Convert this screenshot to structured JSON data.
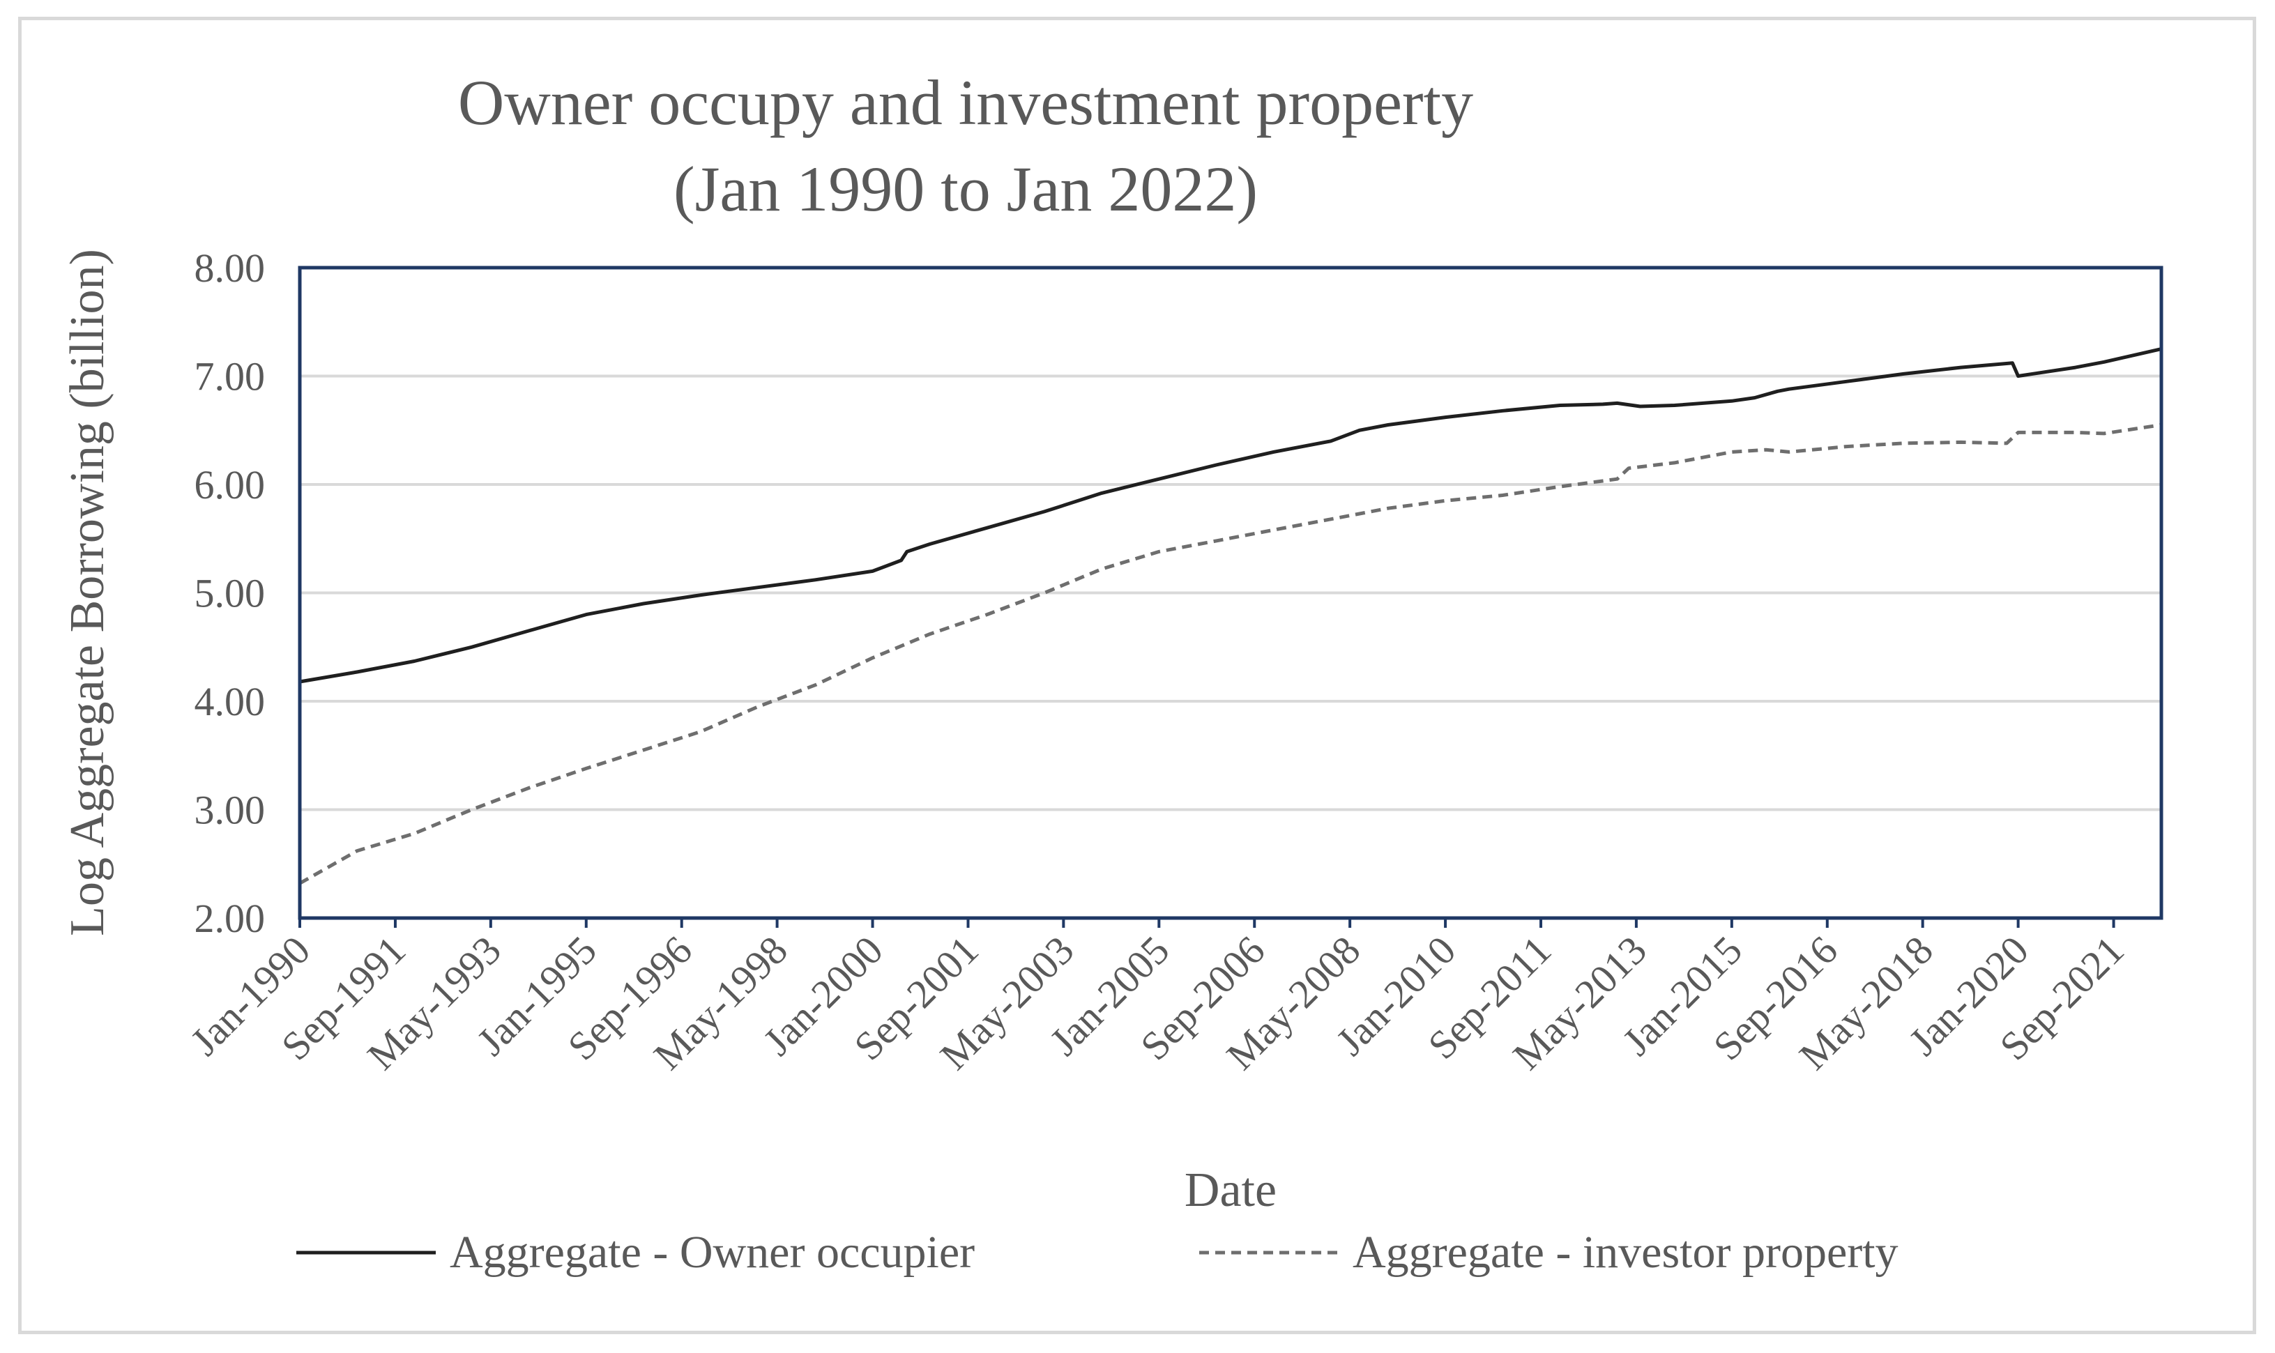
{
  "chart_data": {
    "type": "line",
    "title": [
      "Owner occupy and investment property",
      "(Jan 1990 to Jan 2022)"
    ],
    "xlabel": "Date",
    "ylabel": "Log Aggregate Borrowing (billion)",
    "ylim": [
      2.0,
      8.0
    ],
    "yticks": [
      2.0,
      3.0,
      4.0,
      5.0,
      6.0,
      7.0,
      8.0
    ],
    "ytick_labels": [
      "2.00",
      "3.00",
      "4.00",
      "5.00",
      "6.00",
      "7.00",
      "8.00"
    ],
    "xlim": [
      1990.0,
      2022.5
    ],
    "xticks": [
      1990.0,
      1991.667,
      1993.333,
      1995.0,
      1996.667,
      1998.333,
      2000.0,
      2001.667,
      2003.333,
      2005.0,
      2006.667,
      2008.333,
      2010.0,
      2011.667,
      2013.333,
      2015.0,
      2016.667,
      2018.333,
      2020.0,
      2021.667
    ],
    "xtick_labels": [
      "Jan-1990",
      "Sep-1991",
      "May-1993",
      "Jan-1995",
      "Sep-1996",
      "May-1998",
      "Jan-2000",
      "Sep-2001",
      "May-2003",
      "Jan-2005",
      "Sep-2006",
      "May-2008",
      "Jan-2010",
      "Sep-2011",
      "May-2013",
      "Jan-2015",
      "Sep-2016",
      "May-2018",
      "Jan-2020",
      "Sep-2021"
    ],
    "grid": "horizontal",
    "legend_position": "bottom",
    "series": [
      {
        "name": "Aggregate - Owner occupier",
        "style": "solid",
        "color": "#1f1f1f",
        "x": [
          1990.0,
          1991.0,
          1992.0,
          1993.0,
          1994.0,
          1995.0,
          1996.0,
          1997.0,
          1998.0,
          1999.0,
          2000.0,
          2000.5,
          2000.6,
          2001.0,
          2002.0,
          2003.0,
          2004.0,
          2005.0,
          2006.0,
          2007.0,
          2008.0,
          2008.5,
          2009.0,
          2010.0,
          2011.0,
          2012.0,
          2012.75,
          2013.0,
          2013.4,
          2014.0,
          2015.0,
          2015.4,
          2015.8,
          2016.0,
          2017.0,
          2018.0,
          2019.0,
          2019.9,
          2020.0,
          2021.0,
          2021.5,
          2022.5
        ],
        "values": [
          4.18,
          4.27,
          4.37,
          4.5,
          4.65,
          4.8,
          4.9,
          4.98,
          5.05,
          5.12,
          5.2,
          5.3,
          5.38,
          5.45,
          5.6,
          5.75,
          5.92,
          6.05,
          6.18,
          6.3,
          6.4,
          6.5,
          6.55,
          6.62,
          6.68,
          6.73,
          6.74,
          6.75,
          6.72,
          6.73,
          6.77,
          6.8,
          6.86,
          6.88,
          6.95,
          7.02,
          7.08,
          7.12,
          7.0,
          7.08,
          7.13,
          7.25
        ]
      },
      {
        "name": "Aggregate - investor property",
        "style": "dashed",
        "color": "#6e6e6e",
        "x": [
          1990.0,
          1991.0,
          1992.0,
          1993.0,
          1994.0,
          1995.0,
          1996.0,
          1997.0,
          1998.0,
          1999.0,
          2000.0,
          2001.0,
          2002.0,
          2003.0,
          2004.0,
          2005.0,
          2006.0,
          2007.0,
          2008.0,
          2009.0,
          2010.0,
          2011.0,
          2012.0,
          2013.0,
          2013.2,
          2014.0,
          2015.0,
          2015.6,
          2016.0,
          2017.0,
          2018.0,
          2019.0,
          2019.8,
          2020.0,
          2021.0,
          2021.5,
          2022.5
        ],
        "values": [
          2.32,
          2.62,
          2.78,
          3.0,
          3.2,
          3.38,
          3.55,
          3.72,
          3.95,
          4.15,
          4.4,
          4.62,
          4.8,
          5.0,
          5.22,
          5.38,
          5.48,
          5.58,
          5.68,
          5.78,
          5.85,
          5.9,
          5.98,
          6.05,
          6.15,
          6.2,
          6.3,
          6.32,
          6.3,
          6.35,
          6.38,
          6.39,
          6.38,
          6.48,
          6.48,
          6.47,
          6.55
        ]
      }
    ]
  }
}
